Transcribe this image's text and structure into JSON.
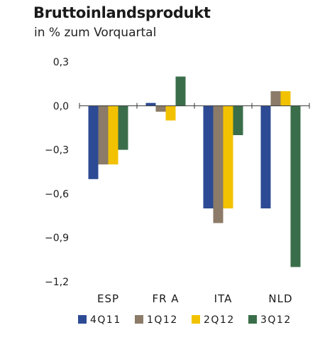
{
  "chart_data": {
    "type": "bar",
    "title": "Bruttoinlandsprodukt",
    "subtitle": "in % zum Vorquartal",
    "categories": [
      "ESP",
      "FR A",
      "ITA",
      "NLD"
    ],
    "series": [
      {
        "name": "4Q11",
        "color": "#2d4b94",
        "values": [
          -0.5,
          0.02,
          -0.7,
          -0.7
        ]
      },
      {
        "name": "1Q12",
        "color": "#8b7b68",
        "values": [
          -0.4,
          -0.04,
          -0.8,
          0.1
        ]
      },
      {
        "name": "2Q12",
        "color": "#f2c200",
        "values": [
          -0.4,
          -0.1,
          -0.7,
          0.1
        ]
      },
      {
        "name": "3Q12",
        "color": "#3a6e4a",
        "values": [
          -0.3,
          0.2,
          -0.2,
          -1.1
        ]
      }
    ],
    "ylim": [
      -1.2,
      0.3
    ],
    "yticks": [
      0.3,
      0.0,
      -0.3,
      -0.6,
      -0.9,
      -1.2
    ],
    "ytick_labels": [
      "0,3",
      "0,0",
      "−0,3",
      "−0,6",
      "−0,9",
      "−1,2"
    ],
    "grid": false,
    "legend_position": "bottom"
  }
}
